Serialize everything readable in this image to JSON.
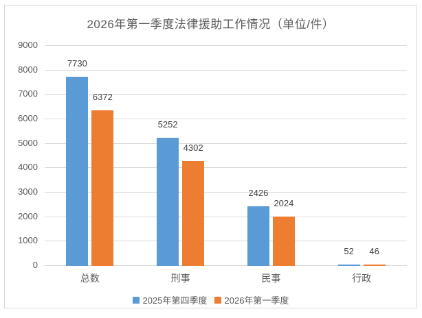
{
  "chart_data": {
    "type": "bar",
    "title": "2026年第一季度法律援助工作情况（单位/件）",
    "categories": [
      "总数",
      "刑事",
      "民事",
      "行政"
    ],
    "series": [
      {
        "name": "2025年第四季度",
        "color": "#5B9BD5",
        "values": [
          7730,
          5252,
          2426,
          52
        ]
      },
      {
        "name": "2026年第一季度",
        "color": "#ED7D31",
        "values": [
          6372,
          4302,
          2024,
          46
        ]
      }
    ],
    "yticks": [
      0,
      1000,
      2000,
      3000,
      4000,
      5000,
      6000,
      7000,
      8000,
      9000
    ],
    "ylim": [
      0,
      9000
    ],
    "xlabel": "",
    "ylabel": "",
    "grid": true,
    "data_labels": true,
    "legend_position": "bottom"
  },
  "colors": {
    "title_text": "#595959",
    "axis_text": "#595959",
    "data_label_text": "#404040",
    "gridline": "#D9D9D9",
    "frame_border": "#D7D7D7",
    "background": "#FFFFFF"
  }
}
